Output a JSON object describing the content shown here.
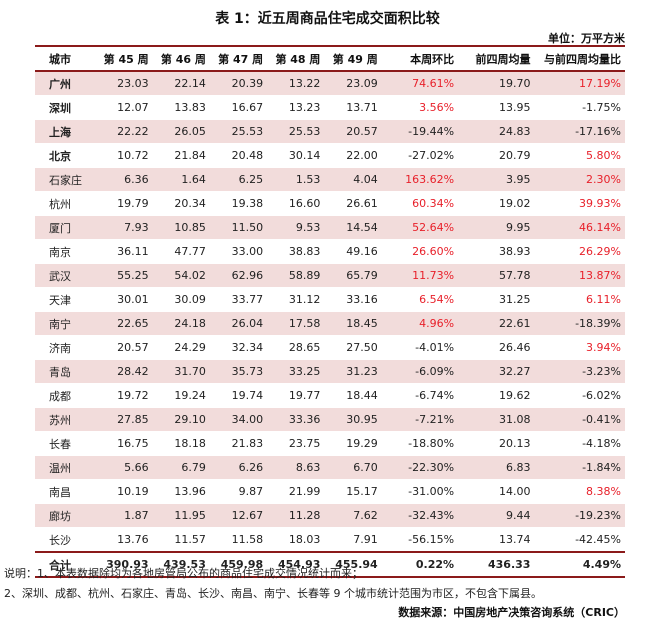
{
  "title": "表 1：近五周商品住宅成交面积比较",
  "unit": "单位：万平方米",
  "columns": [
    "城市",
    "第 45 周",
    "第 46 周",
    "第 47 周",
    "第 48 周",
    "第 49 周",
    "本周环比",
    "前四周均量",
    "与前四周均量比"
  ],
  "rows": [
    {
      "city": "广州",
      "w45": "23.03",
      "w46": "22.14",
      "w47": "20.39",
      "w48": "13.22",
      "w49": "23.09",
      "wow": "74.61%",
      "avg4": "19.70",
      "vs_avg": "17.19%"
    },
    {
      "city": "深圳",
      "w45": "12.07",
      "w46": "13.83",
      "w47": "16.67",
      "w48": "13.23",
      "w49": "13.71",
      "wow": "3.56%",
      "avg4": "13.95",
      "vs_avg": "-1.75%"
    },
    {
      "city": "上海",
      "w45": "22.22",
      "w46": "26.05",
      "w47": "25.53",
      "w48": "25.53",
      "w49": "20.57",
      "wow": "-19.44%",
      "avg4": "24.83",
      "vs_avg": "-17.16%"
    },
    {
      "city": "北京",
      "w45": "10.72",
      "w46": "21.84",
      "w47": "20.48",
      "w48": "30.14",
      "w49": "22.00",
      "wow": "-27.02%",
      "avg4": "20.79",
      "vs_avg": "5.80%"
    },
    {
      "city": "石家庄",
      "w45": "6.36",
      "w46": "1.64",
      "w47": "6.25",
      "w48": "1.53",
      "w49": "4.04",
      "wow": "163.62%",
      "avg4": "3.95",
      "vs_avg": "2.30%"
    },
    {
      "city": "杭州",
      "w45": "19.79",
      "w46": "20.34",
      "w47": "19.38",
      "w48": "16.60",
      "w49": "26.61",
      "wow": "60.34%",
      "avg4": "19.02",
      "vs_avg": "39.93%"
    },
    {
      "city": "厦门",
      "w45": "7.93",
      "w46": "10.85",
      "w47": "11.50",
      "w48": "9.53",
      "w49": "14.54",
      "wow": "52.64%",
      "avg4": "9.95",
      "vs_avg": "46.14%"
    },
    {
      "city": "南京",
      "w45": "36.11",
      "w46": "47.77",
      "w47": "33.00",
      "w48": "38.83",
      "w49": "49.16",
      "wow": "26.60%",
      "avg4": "38.93",
      "vs_avg": "26.29%"
    },
    {
      "city": "武汉",
      "w45": "55.25",
      "w46": "54.02",
      "w47": "62.96",
      "w48": "58.89",
      "w49": "65.79",
      "wow": "11.73%",
      "avg4": "57.78",
      "vs_avg": "13.87%"
    },
    {
      "city": "天津",
      "w45": "30.01",
      "w46": "30.09",
      "w47": "33.77",
      "w48": "31.12",
      "w49": "33.16",
      "wow": "6.54%",
      "avg4": "31.25",
      "vs_avg": "6.11%"
    },
    {
      "city": "南宁",
      "w45": "22.65",
      "w46": "24.18",
      "w47": "26.04",
      "w48": "17.58",
      "w49": "18.45",
      "wow": "4.96%",
      "avg4": "22.61",
      "vs_avg": "-18.39%"
    },
    {
      "city": "济南",
      "w45": "20.57",
      "w46": "24.29",
      "w47": "32.34",
      "w48": "28.65",
      "w49": "27.50",
      "wow": "-4.01%",
      "avg4": "26.46",
      "vs_avg": "3.94%"
    },
    {
      "city": "青岛",
      "w45": "28.42",
      "w46": "31.70",
      "w47": "35.73",
      "w48": "33.25",
      "w49": "31.23",
      "wow": "-6.09%",
      "avg4": "32.27",
      "vs_avg": "-3.23%"
    },
    {
      "city": "成都",
      "w45": "19.72",
      "w46": "19.24",
      "w47": "19.74",
      "w48": "19.77",
      "w49": "18.44",
      "wow": "-6.74%",
      "avg4": "19.62",
      "vs_avg": "-6.02%"
    },
    {
      "city": "苏州",
      "w45": "27.85",
      "w46": "29.10",
      "w47": "34.00",
      "w48": "33.36",
      "w49": "30.95",
      "wow": "-7.21%",
      "avg4": "31.08",
      "vs_avg": "-0.41%"
    },
    {
      "city": "长春",
      "w45": "16.75",
      "w46": "18.18",
      "w47": "21.83",
      "w48": "23.75",
      "w49": "19.29",
      "wow": "-18.80%",
      "avg4": "20.13",
      "vs_avg": "-4.18%"
    },
    {
      "city": "温州",
      "w45": "5.66",
      "w46": "6.79",
      "w47": "6.26",
      "w48": "8.63",
      "w49": "6.70",
      "wow": "-22.30%",
      "avg4": "6.83",
      "vs_avg": "-1.84%"
    },
    {
      "city": "南昌",
      "w45": "10.19",
      "w46": "13.96",
      "w47": "9.87",
      "w48": "21.99",
      "w49": "15.17",
      "wow": "-31.00%",
      "avg4": "14.00",
      "vs_avg": "8.38%"
    },
    {
      "city": "廊坊",
      "w45": "1.87",
      "w46": "11.95",
      "w47": "12.67",
      "w48": "11.28",
      "w49": "7.62",
      "wow": "-32.43%",
      "avg4": "9.44",
      "vs_avg": "-19.23%"
    },
    {
      "city": "长沙",
      "w45": "13.76",
      "w46": "11.57",
      "w47": "11.58",
      "w48": "18.03",
      "w49": "7.91",
      "wow": "-56.15%",
      "avg4": "13.74",
      "vs_avg": "-42.45%"
    }
  ],
  "total": {
    "city": "合计",
    "w45": "390.93",
    "w46": "439.53",
    "w47": "459.98",
    "w48": "454.93",
    "w49": "455.94",
    "wow": "0.22%",
    "avg4": "436.33",
    "vs_avg": "4.49%"
  },
  "notes": [
    "说明：1、本表数据除均为各地房管局公布的商品住宅成交情况统计而来；",
    "2、深圳、成都、杭州、石家庄、青岛、长沙、南昌、南宁、长春等 9 个城市统计范围为市区，不包含下属县。"
  ],
  "source": "数据来源：中国房地产决策咨询系统（CRIC）",
  "colors": {
    "highlight_row": "#f2dcdb",
    "positive_text": "#e8202a",
    "rule": "#8b1a1a"
  }
}
